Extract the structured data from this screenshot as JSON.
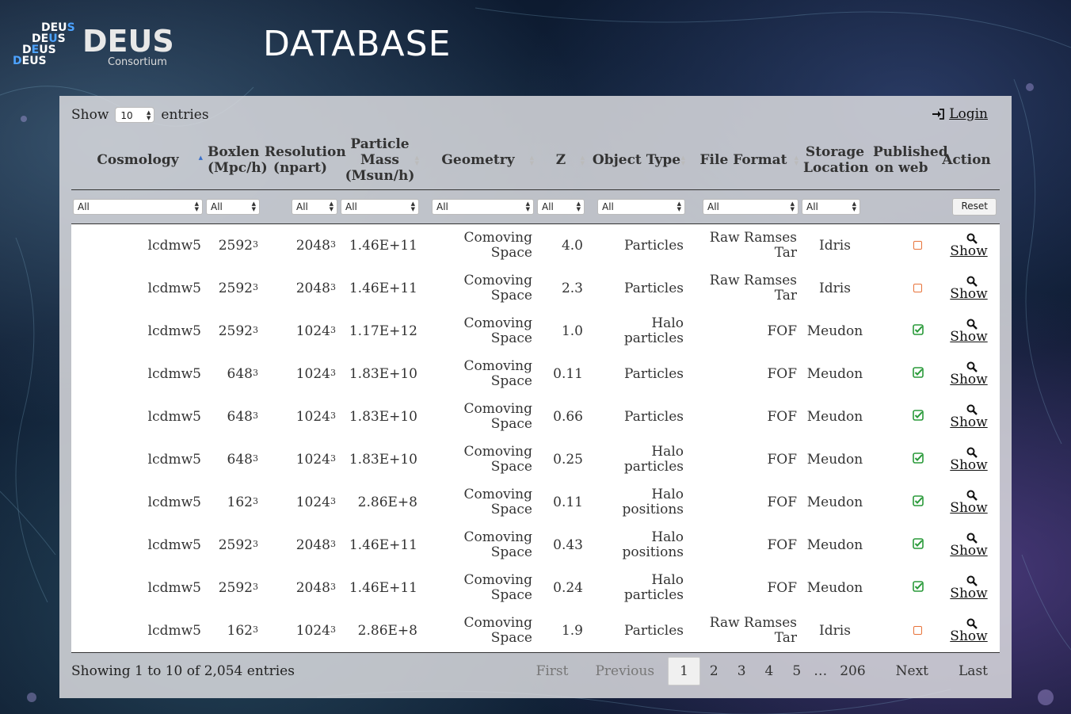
{
  "header": {
    "logo_stack": [
      "DEUS",
      "DEUS",
      "DEUS",
      "DEUS"
    ],
    "logo_big": "DEUS",
    "logo_sub": "Consortium",
    "title": "DATABASE"
  },
  "controls": {
    "show_label": "Show",
    "show_value": "10",
    "entries_label": "entries",
    "login_label": "Login"
  },
  "columns": [
    {
      "label": "Cosmology"
    },
    {
      "label": "Boxlen (Mpc/h)"
    },
    {
      "label": "Resolution (npart)"
    },
    {
      "label": "Particle Mass (Msun/h)"
    },
    {
      "label": "Geometry"
    },
    {
      "label": "Z"
    },
    {
      "label": "Object Type"
    },
    {
      "label": "File Format"
    },
    {
      "label": "Storage Location"
    },
    {
      "label": "Published on web"
    },
    {
      "label": "Action"
    }
  ],
  "filters": {
    "all": "All",
    "reset_label": "Reset"
  },
  "rows": [
    {
      "cosmology": "lcdmw5",
      "boxlen": "2592",
      "res": "2048",
      "exp": "3",
      "mass": "1.46E+11",
      "geo1": "Comoving",
      "geo2": "Space",
      "z": "4.0",
      "type1": "Particles",
      "type2": "",
      "fmt1": "Raw Ramses",
      "fmt2": "Tar",
      "loc": "Idris",
      "published": false,
      "action": "Show"
    },
    {
      "cosmology": "lcdmw5",
      "boxlen": "2592",
      "res": "2048",
      "exp": "3",
      "mass": "1.46E+11",
      "geo1": "Comoving",
      "geo2": "Space",
      "z": "2.3",
      "type1": "Particles",
      "type2": "",
      "fmt1": "Raw Ramses",
      "fmt2": "Tar",
      "loc": "Idris",
      "published": false,
      "action": "Show"
    },
    {
      "cosmology": "lcdmw5",
      "boxlen": "2592",
      "res": "1024",
      "exp": "3",
      "mass": "1.17E+12",
      "geo1": "Comoving",
      "geo2": "Space",
      "z": "1.0",
      "type1": "Halo",
      "type2": "particles",
      "fmt1": "FOF",
      "fmt2": "",
      "loc": "Meudon",
      "published": true,
      "action": "Show"
    },
    {
      "cosmology": "lcdmw5",
      "boxlen": "648",
      "res": "1024",
      "exp": "3",
      "mass": "1.83E+10",
      "geo1": "Comoving",
      "geo2": "Space",
      "z": "0.11",
      "type1": "Particles",
      "type2": "",
      "fmt1": "FOF",
      "fmt2": "",
      "loc": "Meudon",
      "published": true,
      "action": "Show"
    },
    {
      "cosmology": "lcdmw5",
      "boxlen": "648",
      "res": "1024",
      "exp": "3",
      "mass": "1.83E+10",
      "geo1": "Comoving",
      "geo2": "Space",
      "z": "0.66",
      "type1": "Particles",
      "type2": "",
      "fmt1": "FOF",
      "fmt2": "",
      "loc": "Meudon",
      "published": true,
      "action": "Show"
    },
    {
      "cosmology": "lcdmw5",
      "boxlen": "648",
      "res": "1024",
      "exp": "3",
      "mass": "1.83E+10",
      "geo1": "Comoving",
      "geo2": "Space",
      "z": "0.25",
      "type1": "Halo",
      "type2": "particles",
      "fmt1": "FOF",
      "fmt2": "",
      "loc": "Meudon",
      "published": true,
      "action": "Show"
    },
    {
      "cosmology": "lcdmw5",
      "boxlen": "162",
      "res": "1024",
      "exp": "3",
      "mass": "2.86E+8",
      "geo1": "Comoving",
      "geo2": "Space",
      "z": "0.11",
      "type1": "Halo",
      "type2": "positions",
      "fmt1": "FOF",
      "fmt2": "",
      "loc": "Meudon",
      "published": true,
      "action": "Show"
    },
    {
      "cosmology": "lcdmw5",
      "boxlen": "2592",
      "res": "2048",
      "exp": "3",
      "mass": "1.46E+11",
      "geo1": "Comoving",
      "geo2": "Space",
      "z": "0.43",
      "type1": "Halo",
      "type2": "positions",
      "fmt1": "FOF",
      "fmt2": "",
      "loc": "Meudon",
      "published": true,
      "action": "Show"
    },
    {
      "cosmology": "lcdmw5",
      "boxlen": "2592",
      "res": "2048",
      "exp": "3",
      "mass": "1.46E+11",
      "geo1": "Comoving",
      "geo2": "Space",
      "z": "0.24",
      "type1": "Halo",
      "type2": "particles",
      "fmt1": "FOF",
      "fmt2": "",
      "loc": "Meudon",
      "published": true,
      "action": "Show"
    },
    {
      "cosmology": "lcdmw5",
      "boxlen": "162",
      "res": "1024",
      "exp": "3",
      "mass": "2.86E+8",
      "geo1": "Comoving",
      "geo2": "Space",
      "z": "1.9",
      "type1": "Particles",
      "type2": "",
      "fmt1": "Raw Ramses",
      "fmt2": "Tar",
      "loc": "Idris",
      "published": false,
      "action": "Show"
    }
  ],
  "footer": {
    "info": "Showing 1 to 10 of 2,054 entries",
    "first": "First",
    "previous": "Previous",
    "pages": [
      "1",
      "2",
      "3",
      "4",
      "5"
    ],
    "ellipsis": "…",
    "last_page": "206",
    "next": "Next",
    "last": "Last"
  },
  "colors": {
    "unpublished": "#e8733a",
    "published": "#2a9a3a",
    "sort_active": "#3a6fc9"
  }
}
